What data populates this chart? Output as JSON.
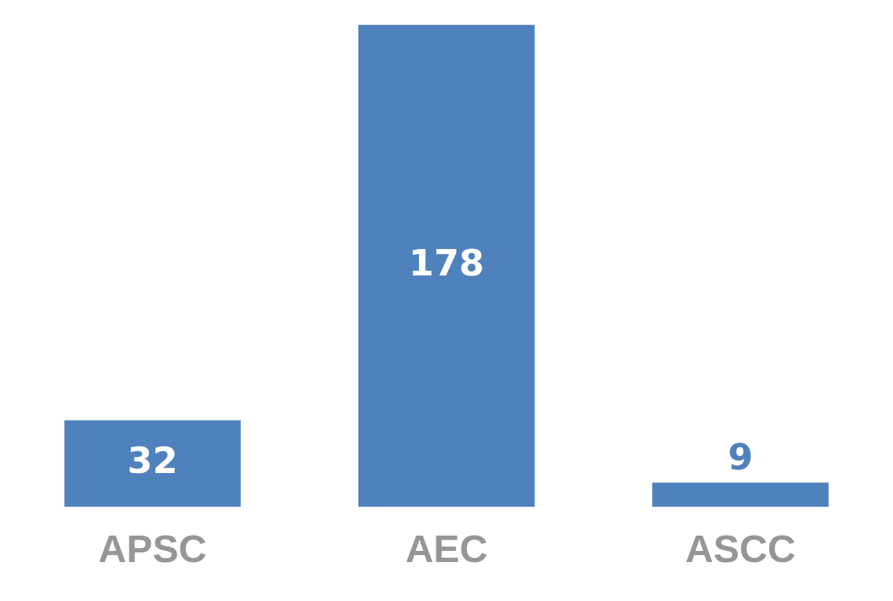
{
  "chart_data": {
    "type": "bar",
    "categories": [
      "APSC",
      "AEC",
      "ASCC"
    ],
    "values": [
      32,
      178,
      9
    ],
    "color": "#4f81bd",
    "data_labels": true,
    "grid": false,
    "legend": false
  }
}
